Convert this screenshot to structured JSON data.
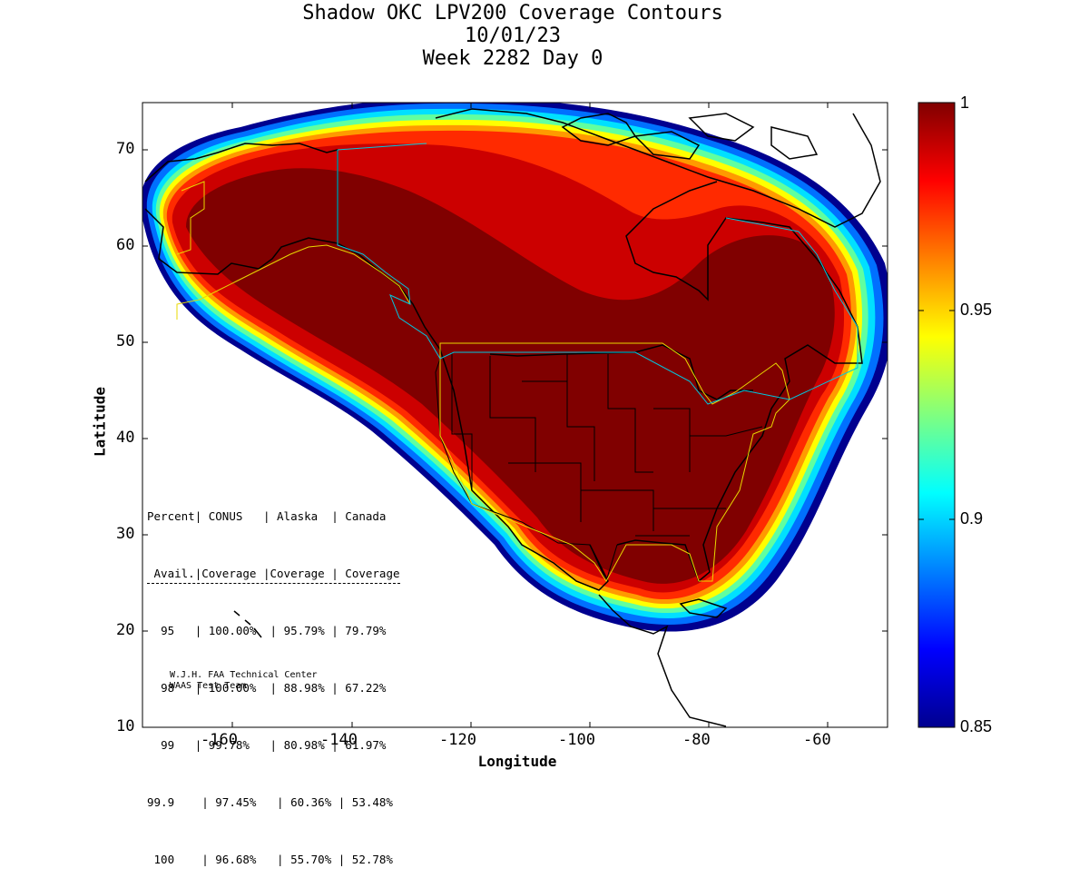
{
  "title": {
    "line1": "Shadow OKC LPV200 Coverage Contours",
    "line2": "10/01/23",
    "line3": "Week 2282 Day 0"
  },
  "axes": {
    "xlabel": "Longitude",
    "ylabel": "Latitude",
    "x_range": [
      -175,
      -50
    ],
    "y_range": [
      10,
      75
    ],
    "x_ticks": [
      "-160",
      "-140",
      "-120",
      "-100",
      "-80",
      "-60"
    ],
    "y_ticks": [
      "10",
      "20",
      "30",
      "40",
      "50",
      "60",
      "70"
    ]
  },
  "colorbar": {
    "range": [
      0.85,
      1.0
    ],
    "colormap": "jet",
    "labels": [
      "1",
      "0.95",
      "0.9",
      "0.85"
    ]
  },
  "stats_table": {
    "header1": [
      "Percent",
      "CONUS",
      "Alaska",
      "Canada"
    ],
    "header2": [
      "Avail.",
      "Coverage",
      "Coverage",
      "Coverage"
    ],
    "rows": [
      [
        "95",
        "100.00%",
        "95.79%",
        "79.79%"
      ],
      [
        "98",
        "100.00%",
        "88.98%",
        "67.22%"
      ],
      [
        "99",
        "99.78%",
        "80.98%",
        "61.97%"
      ],
      [
        "99.9",
        "97.45%",
        "60.36%",
        "53.48%"
      ],
      [
        "100",
        "96.68%",
        "55.70%",
        "52.78%"
      ]
    ]
  },
  "credit": {
    "line1": "W.J.H. FAA Technical Center",
    "line2": "WAAS Test Team"
  }
}
